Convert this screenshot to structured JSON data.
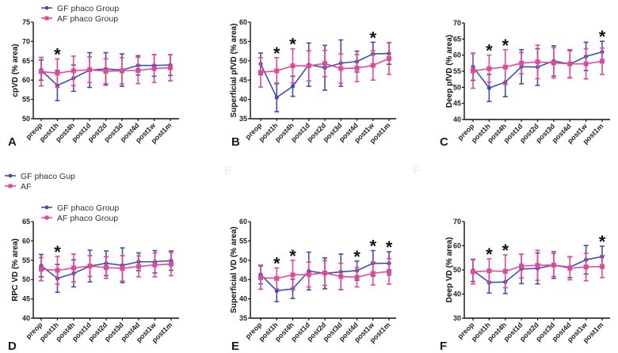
{
  "colors": {
    "gf": "#3f4fb0",
    "af": "#e0499a",
    "axis": "#111111"
  },
  "stray_legend": {
    "items": [
      {
        "label": "GF phaco Gup",
        "series": "gf"
      },
      {
        "label": "AF",
        "series": "af"
      }
    ]
  },
  "faint_letters": [
    "E",
    "F"
  ],
  "chart_data": [
    {
      "type": "line",
      "panel": "A",
      "ylabel": "cpVD (% area)",
      "ylim": [
        50,
        75
      ],
      "yticks": [
        50,
        55,
        60,
        65,
        70,
        75
      ],
      "categories": [
        "preop",
        "post1h",
        "post4h",
        "post1d",
        "post2d",
        "post3d",
        "post4d",
        "post1w",
        "post1m"
      ],
      "legend": [
        "GF phaco Group",
        "AF phaco Group"
      ],
      "legend_position": "top-left",
      "series": [
        {
          "name": "GF phaco Group",
          "key": "gf",
          "values": [
            62.6,
            58.6,
            60.5,
            62.6,
            62.9,
            62.6,
            63.8,
            63.8,
            63.9
          ],
          "err": [
            2.6,
            3.9,
            3.4,
            4.5,
            4.2,
            4.2,
            2.5,
            2.8,
            2.7
          ]
        },
        {
          "name": "AF phaco Group",
          "key": "af",
          "values": [
            62.2,
            61.8,
            62.4,
            62.7,
            62.3,
            62.4,
            62.5,
            63.0,
            63.2
          ],
          "err": [
            3.7,
            3.7,
            3.8,
            3.3,
            3.2,
            3.4,
            3.4,
            3.6,
            3.4
          ]
        }
      ],
      "significant": [
        "post1h"
      ]
    },
    {
      "type": "line",
      "panel": "B",
      "ylabel": "Superficial pfVD (% area)",
      "ylim": [
        35,
        60
      ],
      "yticks": [
        35,
        40,
        45,
        50,
        55,
        60
      ],
      "categories": [
        "preop",
        "post1h",
        "post4h",
        "post1d",
        "post2d",
        "post3d",
        "post4d",
        "post1w",
        "post1m"
      ],
      "legend": [],
      "series": [
        {
          "name": "GF phaco Group",
          "key": "gf",
          "values": [
            49.2,
            40.5,
            43.4,
            49.0,
            48.2,
            49.4,
            49.8,
            51.8,
            51.9
          ],
          "err": [
            2.8,
            3.7,
            2.6,
            5.6,
            5.8,
            6.0,
            2.7,
            3.0,
            2.8
          ]
        },
        {
          "name": "AF phaco Group",
          "key": "af",
          "values": [
            47.0,
            47.4,
            48.7,
            48.7,
            49.3,
            48.0,
            48.1,
            48.8,
            50.6
          ],
          "err": [
            3.8,
            3.4,
            4.4,
            3.9,
            3.4,
            3.8,
            3.5,
            3.8,
            4.1
          ]
        }
      ],
      "significant": [
        "post1h",
        "post4h",
        "post1w"
      ]
    },
    {
      "type": "line",
      "panel": "C",
      "ylabel": "Deep pfVD (% area)",
      "ylim": [
        40,
        70
      ],
      "yticks": [
        40,
        45,
        50,
        55,
        60,
        65,
        70
      ],
      "categories": [
        "preop",
        "post1h",
        "post4h",
        "post1d",
        "post2d",
        "post3d",
        "post4d",
        "post1w",
        "post1m"
      ],
      "legend": [],
      "series": [
        {
          "name": "GF phaco Group",
          "key": "gf",
          "values": [
            56.4,
            49.8,
            51.6,
            56.4,
            56.3,
            58.2,
            57.2,
            59.6,
            61.0
          ],
          "err": [
            4.2,
            4.2,
            4.5,
            5.3,
            5.7,
            4.7,
            4.2,
            4.4,
            3.3
          ]
        },
        {
          "name": "AF phaco Group",
          "key": "af",
          "values": [
            55.1,
            55.8,
            56.3,
            57.5,
            57.9,
            57.6,
            57.3,
            57.3,
            58.1
          ],
          "err": [
            5.4,
            4.2,
            5.4,
            3.3,
            5.2,
            4.7,
            4.4,
            4.7,
            4.1
          ]
        }
      ],
      "significant": [
        "post1h",
        "post4h",
        "post1m"
      ]
    },
    {
      "type": "line",
      "panel": "D",
      "ylabel": "RPC VD (% area)",
      "ylim": [
        40,
        65
      ],
      "yticks": [
        40,
        45,
        50,
        55,
        60,
        65
      ],
      "categories": [
        "preop",
        "post1h",
        "post4h",
        "post1d",
        "post2d",
        "post3d",
        "post4d",
        "post1w",
        "post1m"
      ],
      "legend": [
        "GF phaco Group",
        "AF phaco Group"
      ],
      "legend_position": "top-left",
      "series": [
        {
          "name": "GF phaco Group",
          "key": "gf",
          "values": [
            53.6,
            50.3,
            51.6,
            53.5,
            54.2,
            53.7,
            54.6,
            54.6,
            54.9
          ],
          "err": [
            2.9,
            3.6,
            3.5,
            4.1,
            3.2,
            4.5,
            2.3,
            2.9,
            2.5
          ]
        },
        {
          "name": "AF phaco Group",
          "key": "af",
          "values": [
            52.7,
            52.4,
            53.0,
            53.5,
            53.1,
            52.9,
            53.4,
            53.8,
            54.0
          ],
          "err": [
            3.0,
            3.6,
            3.6,
            2.7,
            2.8,
            3.3,
            2.7,
            3.1,
            3.0
          ]
        }
      ],
      "significant": [
        "post1h"
      ]
    },
    {
      "type": "line",
      "panel": "E",
      "ylabel": "Superficial VD (% area)",
      "ylim": [
        35,
        60
      ],
      "yticks": [
        35,
        40,
        45,
        50,
        55,
        60
      ],
      "categories": [
        "preop",
        "post1h",
        "post4h",
        "post1d",
        "post2d",
        "post3d",
        "post4d",
        "post1w",
        "post1m"
      ],
      "legend": [],
      "series": [
        {
          "name": "GF phaco Group",
          "key": "gf",
          "values": [
            46.3,
            42.1,
            42.6,
            47.2,
            46.6,
            47.0,
            47.3,
            49.2,
            49.2
          ],
          "err": [
            2.4,
            2.8,
            2.5,
            4.9,
            4.0,
            4.6,
            2.5,
            3.3,
            3.0
          ]
        },
        {
          "name": "AF phaco Group",
          "key": "af",
          "values": [
            45.5,
            45.3,
            46.2,
            46.3,
            46.7,
            45.8,
            45.6,
            46.6,
            47.1
          ],
          "err": [
            3.0,
            2.7,
            3.8,
            3.2,
            3.2,
            3.4,
            2.5,
            3.0,
            3.3
          ]
        }
      ],
      "significant": [
        "post1h",
        "post4h",
        "post4d",
        "post1w",
        "post1m"
      ]
    },
    {
      "type": "line",
      "panel": "F",
      "ylabel": "Deep VD (% area)",
      "ylim": [
        30,
        70
      ],
      "yticks": [
        30,
        40,
        50,
        60,
        70
      ],
      "categories": [
        "preop",
        "post1h",
        "post4h",
        "post1d",
        "post2d",
        "post3d",
        "post4d",
        "post1w",
        "post1m"
      ],
      "legend": [],
      "series": [
        {
          "name": "GF phaco Group",
          "key": "gf",
          "values": [
            49.8,
            44.8,
            45.0,
            50.4,
            50.6,
            52.0,
            51.1,
            54.2,
            55.5
          ],
          "err": [
            4.6,
            4.4,
            4.8,
            6.1,
            6.4,
            5.5,
            4.3,
            5.9,
            4.3
          ]
        },
        {
          "name": "AF phaco Group",
          "key": "af",
          "values": [
            49.2,
            49.6,
            49.4,
            51.6,
            51.9,
            52.0,
            50.7,
            51.2,
            51.4
          ],
          "err": [
            5.0,
            5.0,
            6.8,
            4.9,
            6.2,
            4.7,
            4.8,
            5.7,
            4.6
          ]
        }
      ],
      "significant": [
        "post1h",
        "post4h",
        "post1m"
      ]
    }
  ]
}
